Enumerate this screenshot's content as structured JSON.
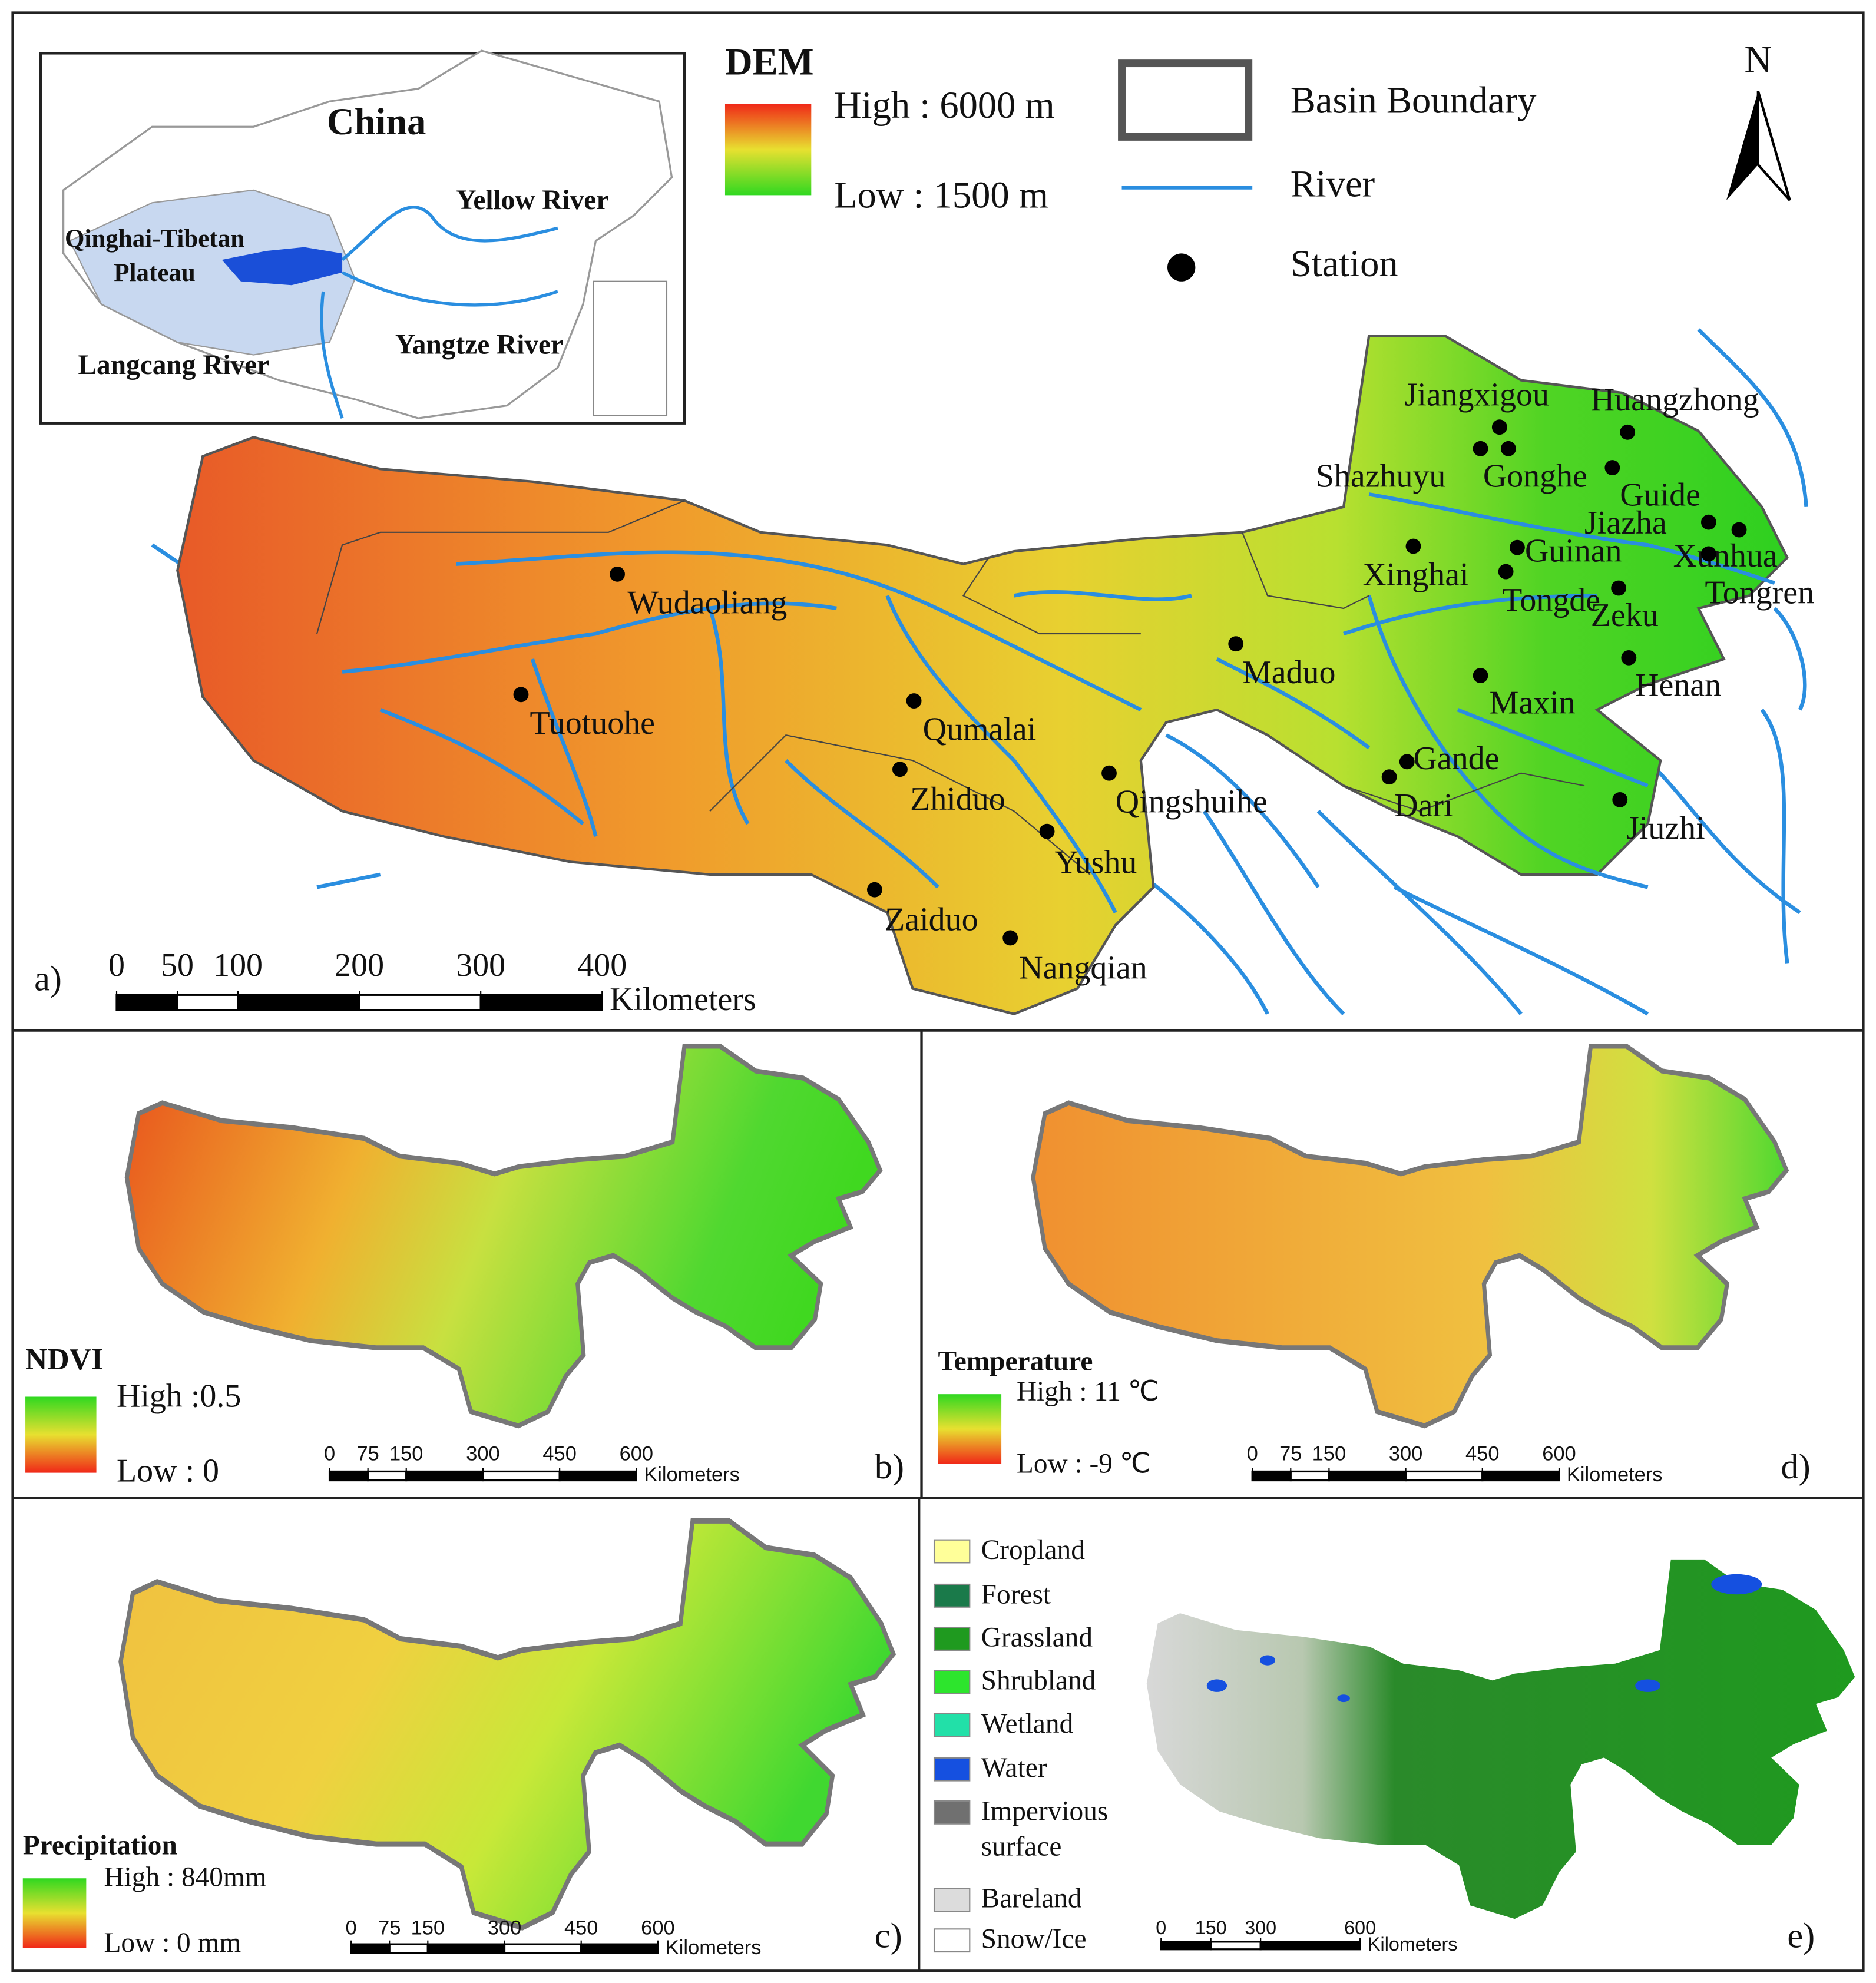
{
  "panel_a": {
    "label": "a)",
    "inset": {
      "country": "China",
      "yellow_river": "Yellow River",
      "plateau_line1": "Qinghai-Tibetan",
      "plateau_line2": "Plateau",
      "yangtze_river": "Yangtze River",
      "langcang_river": "Langcang River"
    },
    "dem_legend": {
      "title": "DEM",
      "high": "High : 6000 m",
      "low": "Low : 1500 m"
    },
    "legend": {
      "basin_boundary": "Basin Boundary",
      "river": "River",
      "station": "Station"
    },
    "north": "N",
    "stations": [
      "Jiangxigou",
      "Huangzhong",
      "Shazhuyu",
      "Gonghe",
      "Guide",
      "Jiazha",
      "Xunhua",
      "Guinan",
      "Xinghai",
      "Tongde",
      "Zeku",
      "Tongren",
      "Henan",
      "Maxin",
      "Maduo",
      "Wudaoliang",
      "Tuotuohe",
      "Qumalai",
      "Zhiduo",
      "Qingshuihe",
      "Gande",
      "Dari",
      "Jiuzhi",
      "Yushu",
      "Zaiduo",
      "Nangqian"
    ],
    "scale_bar": {
      "ticks": [
        0,
        50,
        100,
        200,
        300,
        400
      ],
      "unit": "Kilometers"
    }
  },
  "panel_b": {
    "label": "b)",
    "title": "NDVI",
    "high": "High :0.5",
    "low": "Low : 0",
    "scale_bar": {
      "ticks": [
        0,
        75,
        150,
        300,
        450,
        600
      ],
      "unit": "Kilometers"
    }
  },
  "panel_c": {
    "label": "c)",
    "title": "Precipitation",
    "high": "High : 840mm",
    "low": "Low : 0 mm",
    "scale_bar": {
      "ticks": [
        0,
        75,
        150,
        300,
        450,
        600
      ],
      "unit": "Kilometers"
    }
  },
  "panel_d": {
    "label": "d)",
    "title": "Temperature",
    "high": "High : 11 ℃",
    "low": "Low : -9 ℃",
    "scale_bar": {
      "ticks": [
        0,
        75,
        150,
        300,
        450,
        600
      ],
      "unit": "Kilometers"
    }
  },
  "panel_e": {
    "label": "e)",
    "classes": [
      {
        "name": "Cropland",
        "color": "#ffff99"
      },
      {
        "name": "Forest",
        "color": "#1a7a4a"
      },
      {
        "name": "Grassland",
        "color": "#1f9a1f"
      },
      {
        "name": "Shrubland",
        "color": "#2de52d"
      },
      {
        "name": "Wetland",
        "color": "#22e0a8"
      },
      {
        "name": "Water",
        "color": "#1550e0"
      },
      {
        "name": "Impervious surface",
        "color": "#707070"
      },
      {
        "name": "Bareland",
        "color": "#dcdcdc"
      },
      {
        "name": "Snow/Ice",
        "color": "#ffffff"
      }
    ],
    "scale_bar": {
      "ticks": [
        0,
        150,
        300,
        600
      ],
      "unit": "Kilometers"
    }
  }
}
